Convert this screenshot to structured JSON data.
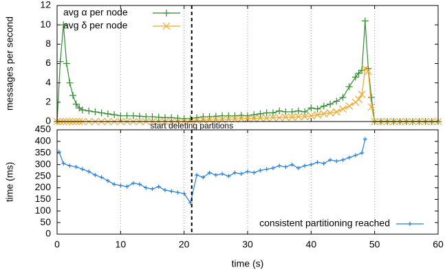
{
  "chart_data": [
    {
      "type": "line",
      "ylabel": "messages per second",
      "x": [
        0,
        0.5,
        1,
        1.5,
        2,
        2.5,
        3,
        3.5,
        4,
        5,
        6,
        7,
        8,
        9,
        10,
        11,
        12,
        13,
        14,
        15,
        16,
        17,
        18,
        19,
        20,
        21,
        22,
        23,
        24,
        25,
        26,
        27,
        28,
        29,
        30,
        31,
        32,
        33,
        34,
        35,
        36,
        37,
        38,
        39,
        40,
        41,
        42,
        43,
        44,
        45,
        46,
        47,
        47.5,
        48,
        48.5,
        49,
        49.5,
        50,
        51,
        52,
        53,
        54,
        55,
        56,
        57,
        58,
        59,
        60
      ],
      "series": [
        {
          "name": "avg α per node",
          "color": "#2e8b2e",
          "marker": "+",
          "values": [
            0,
            6.2,
            10,
            6,
            4,
            2.7,
            1.8,
            1.4,
            1.2,
            1.1,
            1.0,
            0.9,
            0.8,
            0.7,
            0.6,
            0.6,
            0.6,
            0.55,
            0.5,
            0.5,
            0.45,
            0.4,
            0.4,
            0.35,
            0.3,
            0.3,
            0.4,
            0.5,
            0.5,
            0.55,
            0.6,
            0.6,
            0.6,
            0.65,
            0.6,
            0.7,
            0.8,
            0.9,
            0.9,
            1.1,
            1.0,
            1.0,
            1.1,
            1.0,
            1.4,
            1.3,
            1.6,
            1.8,
            2.1,
            2.5,
            3.6,
            4.6,
            5.0,
            5.3,
            10.4,
            5.5,
            2.5,
            0,
            0,
            0,
            0,
            0,
            0,
            0,
            0,
            0,
            0,
            0
          ]
        },
        {
          "name": "avg δ per node",
          "color": "#f5a623",
          "marker": "x",
          "values": [
            0,
            0,
            0,
            0,
            0,
            0,
            0,
            0,
            0,
            0,
            0,
            0,
            0,
            0,
            0,
            0,
            0,
            0,
            0,
            0,
            0,
            0,
            0,
            0,
            0,
            0.05,
            0.1,
            0.15,
            0.2,
            0.2,
            0.2,
            0.25,
            0.25,
            0.3,
            0.3,
            0.3,
            0.35,
            0.35,
            0.4,
            0.4,
            0.45,
            0.45,
            0.5,
            0.5,
            0.6,
            0.7,
            0.8,
            0.9,
            1.0,
            1.3,
            1.6,
            2.0,
            2.3,
            2.8,
            5.5,
            5.2,
            1.5,
            0,
            0,
            0,
            0,
            0,
            0,
            0,
            0,
            0,
            0,
            0
          ]
        }
      ],
      "xlim": [
        0,
        60
      ],
      "xticks": [
        0,
        10,
        20,
        30,
        40,
        50,
        60
      ],
      "ylim": [
        0,
        12
      ],
      "yticks": [
        0,
        2,
        4,
        6,
        8,
        10,
        12
      ],
      "legend": "upper left",
      "vline": 21.2,
      "annotation": "start deleting partitions"
    },
    {
      "type": "line",
      "ylabel": "time (ms)",
      "xlabel": "time (s)",
      "x": [
        0.3,
        1,
        2,
        3,
        4,
        5,
        6,
        7,
        8,
        9,
        10,
        11,
        12,
        13,
        14,
        15,
        16,
        17,
        18,
        19,
        20,
        21,
        22,
        23,
        24,
        25,
        26,
        27,
        28,
        29,
        30,
        31,
        32,
        33,
        34,
        35,
        36,
        37,
        38,
        39,
        40,
        41,
        42,
        43,
        44,
        45,
        46,
        47,
        48,
        48.5
      ],
      "series": [
        {
          "name": "consistent partitioning reached",
          "color": "#1f7fe0",
          "marker": "+",
          "values": [
            355,
            305,
            295,
            290,
            280,
            270,
            255,
            245,
            230,
            215,
            210,
            205,
            220,
            215,
            200,
            195,
            205,
            190,
            185,
            180,
            175,
            135,
            255,
            245,
            265,
            255,
            260,
            250,
            265,
            260,
            270,
            265,
            275,
            280,
            285,
            295,
            290,
            300,
            285,
            295,
            300,
            310,
            305,
            320,
            315,
            320,
            330,
            340,
            350,
            410
          ]
        }
      ],
      "xlim": [
        0,
        60
      ],
      "xticks": [
        0,
        10,
        20,
        30,
        40,
        50,
        60
      ],
      "ylim": [
        0,
        450
      ],
      "yticks": [
        0,
        50,
        100,
        150,
        200,
        250,
        300,
        350,
        400,
        450
      ],
      "legend": "lower right",
      "vline": 21.2
    }
  ]
}
